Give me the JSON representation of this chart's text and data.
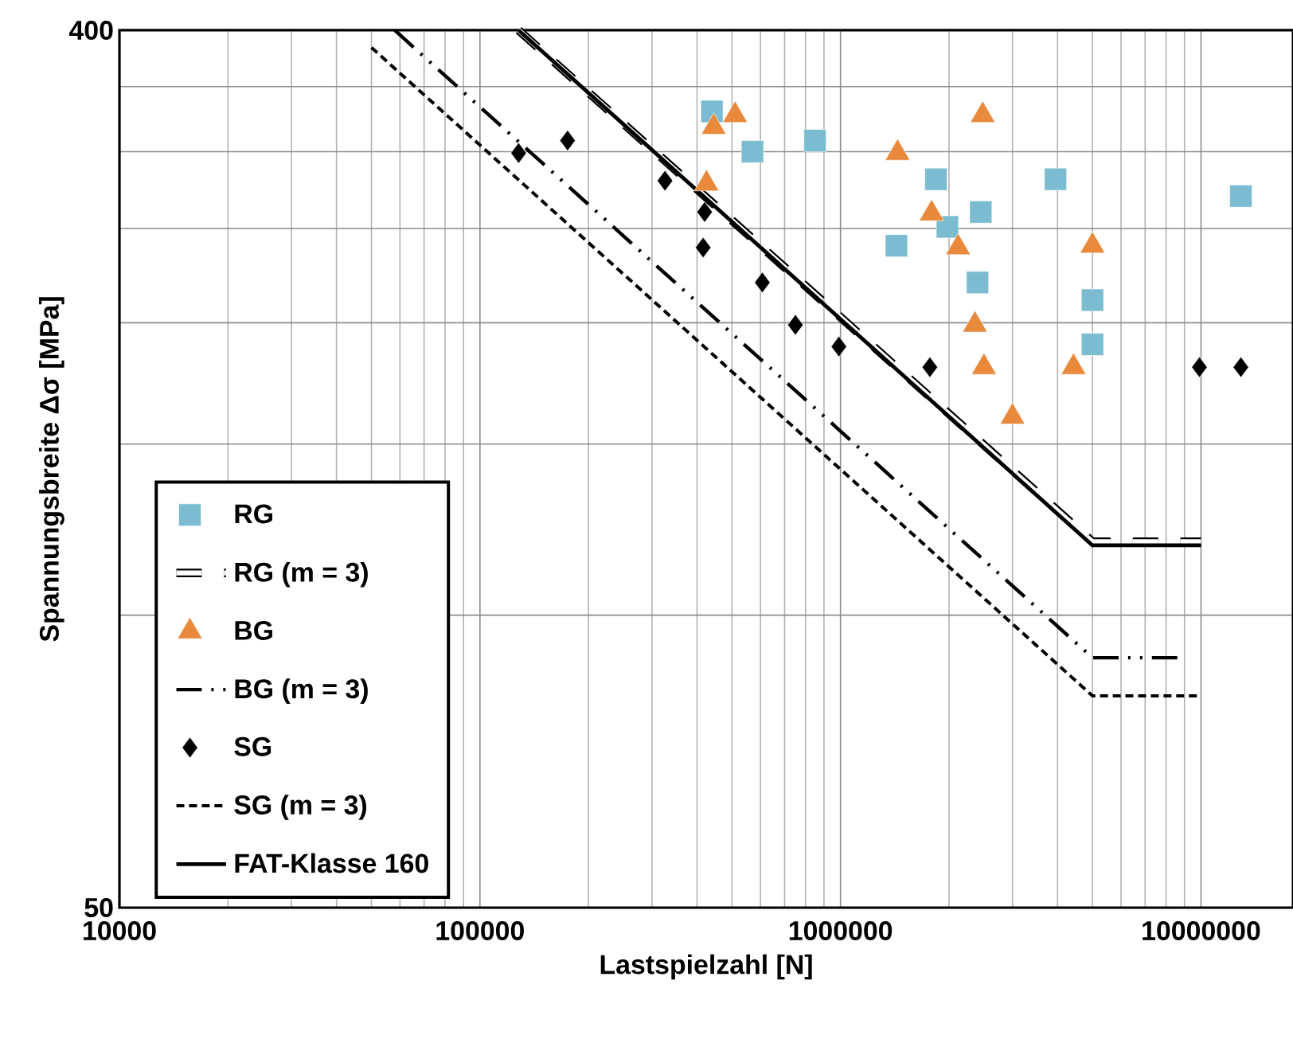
{
  "chart_data": {
    "type": "scatter",
    "xlabel": "Lastspielzahl [N]",
    "ylabel": "Spannungsbreite Δσ  [MPa]",
    "log": "xy",
    "xlim": [
      10000,
      18000000
    ],
    "xticks": [
      10000,
      100000,
      1000000,
      10000000
    ],
    "ylim": [
      50,
      400
    ],
    "yticks": [
      50,
      {
        "value": 100,
        "label": null
      },
      {
        "value": 150,
        "label": null
      },
      {
        "value": 200,
        "label": null
      },
      {
        "value": 250,
        "label": null
      },
      {
        "value": 300,
        "label": null
      },
      {
        "value": 350,
        "label": null
      },
      400
    ],
    "grid": true,
    "legend": "bottom left",
    "series": [
      {
        "name": "RG",
        "marker": "square",
        "color": "#7bbcd0",
        "x": [
          440000,
          570000,
          850000,
          1840000,
          3950000,
          12900000,
          2450000,
          1980000,
          1430000,
          2400000,
          5000000,
          5000000
        ],
        "values": [
          330,
          300,
          308,
          281,
          281,
          270,
          260,
          251,
          240,
          220,
          211,
          190
        ]
      },
      {
        "name": "RG (m = 3)",
        "type": "line",
        "marker": "none",
        "line_style": "double",
        "color": "#000000",
        "x": [
          128000,
          5000000,
          10000000
        ],
        "values": [
          400,
          119,
          119
        ]
      },
      {
        "name": "BG",
        "marker": "triangle",
        "color": "#e8893c",
        "x": [
          510000,
          445000,
          425000,
          2480000,
          1440000,
          1790000,
          2120000,
          5000000,
          2360000,
          2500000,
          4430000,
          3000000
        ],
        "values": [
          327,
          318,
          278,
          327,
          299,
          259,
          239,
          240,
          199,
          180,
          180,
          160
        ]
      },
      {
        "name": "BG (m = 3)",
        "type": "line",
        "marker": "none",
        "line_style": "dashdotdot",
        "color": "#000000",
        "x": [
          58000,
          5000000,
          8900000
        ],
        "values": [
          400,
          90.4,
          90.4
        ]
      },
      {
        "name": "SG",
        "marker": "diamond",
        "color": "#000000",
        "x": [
          175000,
          128000,
          326000,
          420000,
          416000,
          607000,
          750000,
          990000,
          1770000,
          9900000,
          12900000
        ],
        "values": [
          308,
          299,
          280,
          260,
          239,
          220,
          199,
          189,
          180,
          180,
          180
        ]
      },
      {
        "name": "SG (m = 3)",
        "type": "line",
        "marker": "none",
        "line_style": "dashed",
        "color": "#000000",
        "x": [
          50000,
          5000000,
          10000000
        ],
        "values": [
          384,
          82.6,
          82.6
        ]
      },
      {
        "name": "FAT-Klasse 160",
        "type": "line",
        "marker": "none",
        "line_style": "solid",
        "color": "#000000",
        "x": [
          128000,
          5000000,
          10000000
        ],
        "values": [
          400,
          118,
          118
        ]
      }
    ]
  }
}
